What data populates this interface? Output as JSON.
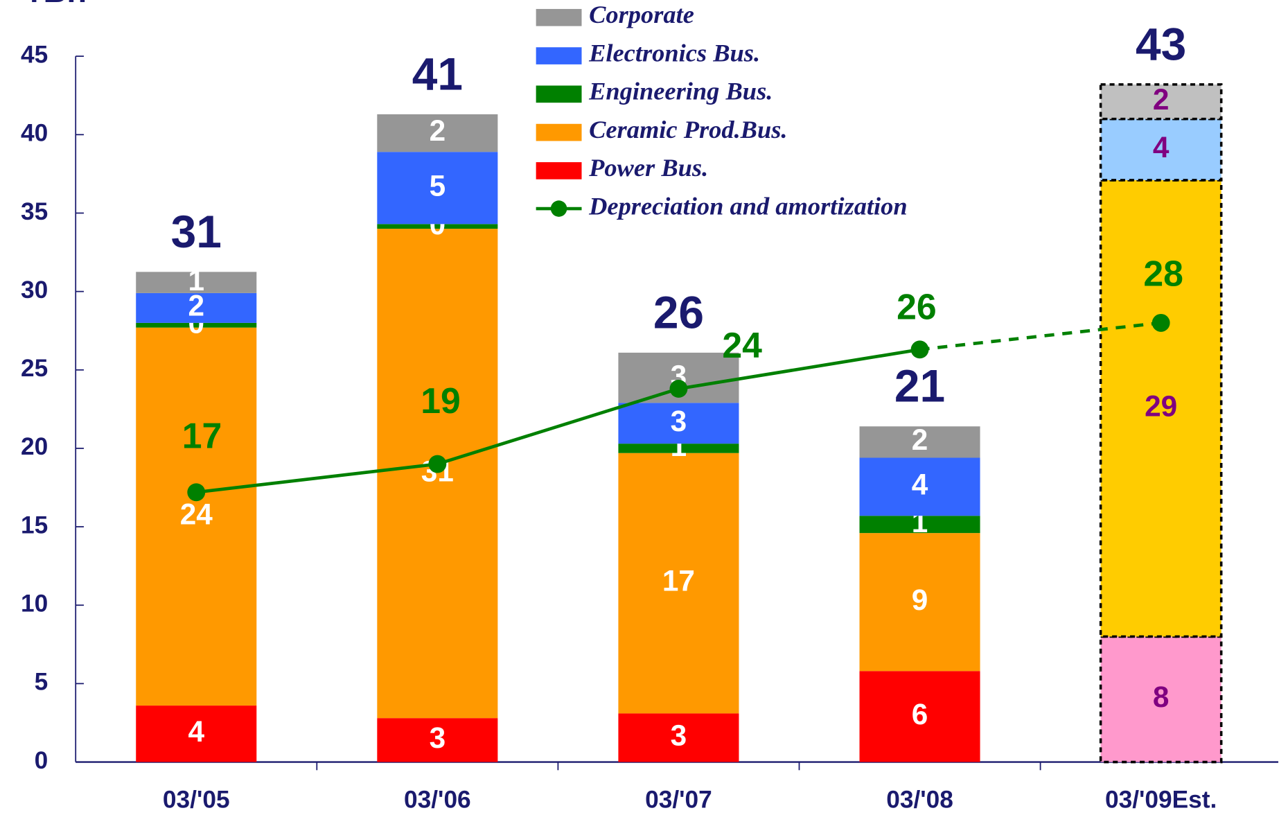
{
  "chart_data": {
    "type": "bar",
    "stacked": true,
    "y_label": "¥Bn",
    "categories": [
      "03/'05",
      "03/'06",
      "03/'07",
      "03/'08",
      "03/'09Est."
    ],
    "ylim": [
      0,
      45
    ],
    "yticks": [
      0,
      5,
      10,
      15,
      20,
      25,
      30,
      35,
      40,
      45
    ],
    "estimate_index": 4,
    "series": [
      {
        "name": "Power Bus.",
        "color": "#ff0000",
        "estimate_color": "#ff99cc",
        "values": [
          3.6,
          2.8,
          3.1,
          5.8,
          8.0
        ],
        "value_labels": [
          "4",
          "3",
          "3",
          "6",
          "8"
        ]
      },
      {
        "name": "Ceramic Prod.Bus.",
        "color": "#ff9900",
        "estimate_color": "#ffcc00",
        "values": [
          24.1,
          31.2,
          16.6,
          8.8,
          29.1
        ],
        "value_labels": [
          "24",
          "31",
          "17",
          "9",
          "29"
        ]
      },
      {
        "name": "Engineering Bus.",
        "color": "#008000",
        "estimate_color": "#008000",
        "values": [
          0.3,
          0.3,
          0.6,
          1.1,
          null
        ],
        "value_labels": [
          "0",
          "0",
          "1",
          "1",
          null
        ]
      },
      {
        "name": "Electronics Bus.",
        "color": "#3366ff",
        "estimate_color": "#99ccff",
        "values": [
          1.9,
          4.6,
          2.6,
          3.7,
          3.9
        ],
        "value_labels": [
          "2",
          "5",
          "3",
          "4",
          "4"
        ]
      },
      {
        "name": "Corporate",
        "color": "#969696",
        "estimate_color": "#c0c0c0",
        "values": [
          1.35,
          2.4,
          3.2,
          2.0,
          2.2
        ],
        "value_labels": [
          "1",
          "2",
          "3",
          "2",
          "2"
        ]
      }
    ],
    "totals": [
      31,
      41,
      26,
      21,
      43
    ],
    "line": {
      "name": "Depreciation and amortization",
      "type": "line",
      "color": "#008000",
      "dashed_from": 3,
      "values": [
        17.2,
        19.0,
        23.8,
        26.3,
        28.0
      ],
      "value_labels": [
        "17",
        "19",
        "24",
        "26",
        "28"
      ]
    }
  }
}
